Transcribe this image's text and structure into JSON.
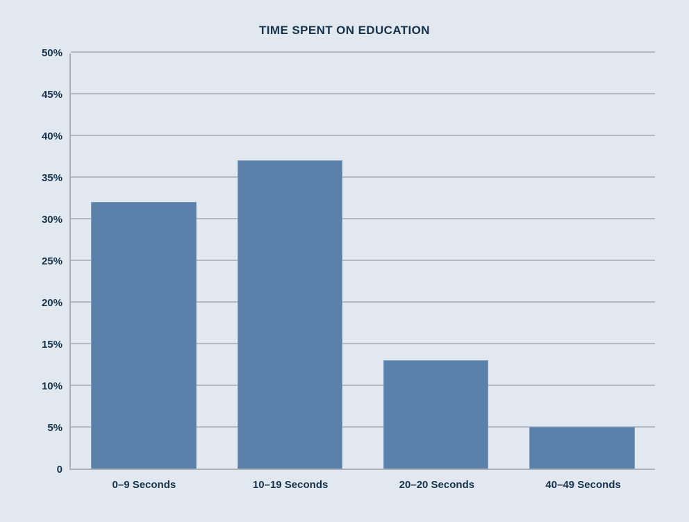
{
  "chart_data": {
    "type": "bar",
    "title": "TIME SPENT ON EDUCATION",
    "categories": [
      "0–9 Seconds",
      "10–19 Seconds",
      "20–20 Seconds",
      "40–49 Seconds"
    ],
    "values": [
      32,
      37,
      13,
      5
    ],
    "unit": "%",
    "xlabel": "",
    "ylabel": "",
    "ylim": [
      0,
      50
    ],
    "ytick_step": 5,
    "ytick_labels": [
      "0",
      "5%",
      "10%",
      "15%",
      "20%",
      "25%",
      "30%",
      "35%",
      "40%",
      "45%",
      "50%"
    ],
    "grid": true,
    "legend": false,
    "colors": {
      "background": "#e2e8ef",
      "bar": "#5b81ab",
      "bar_edge": "#7d99ba",
      "gridline": "#b3bac3",
      "axis": "#a9b1bb",
      "text": "#16324a"
    }
  }
}
